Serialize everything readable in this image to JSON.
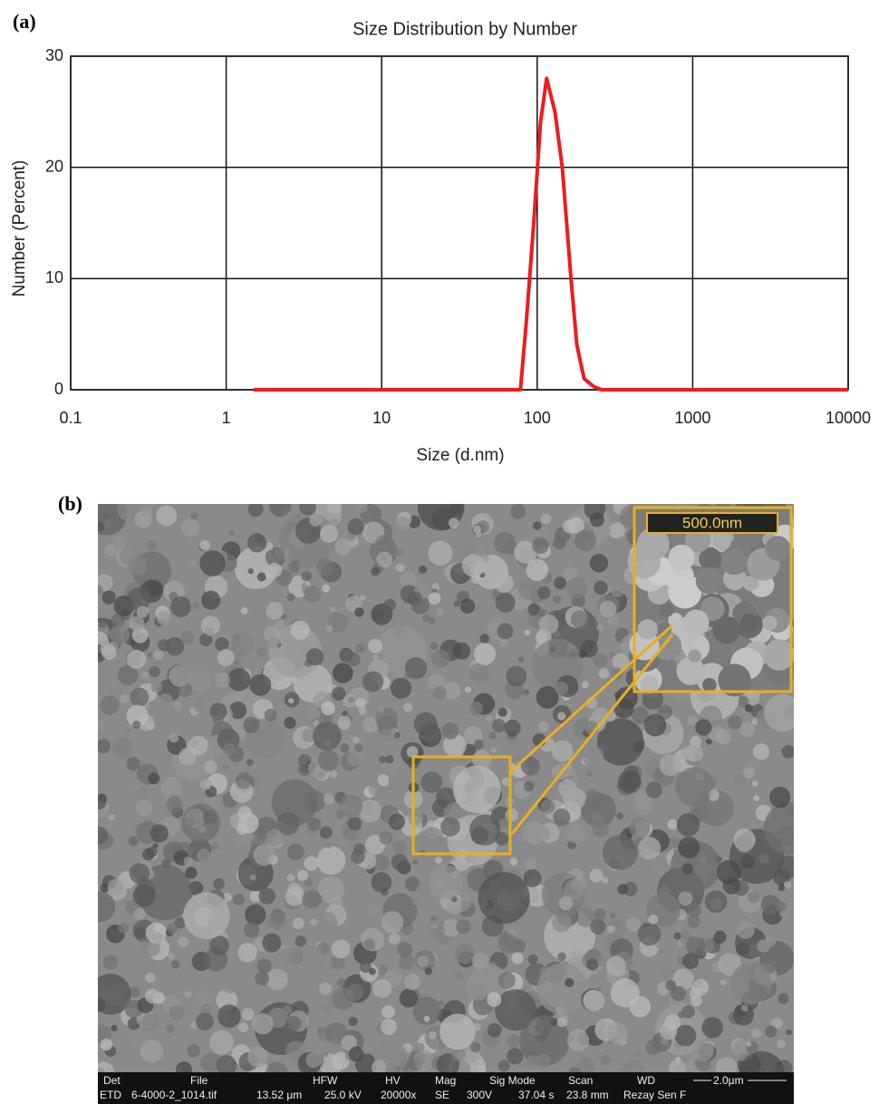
{
  "panel_labels": [
    "(a)",
    "(b)"
  ],
  "chart_data": {
    "type": "line",
    "title": "Size Distribution  by Number",
    "xlabel": "Size (d.nm)",
    "ylabel": "Number (Percent)",
    "x": [
      1.5,
      2,
      3,
      5,
      10,
      20,
      40,
      70,
      78,
      85,
      95,
      105,
      115,
      130,
      145,
      165,
      180,
      200,
      230,
      260,
      500,
      1000,
      3000,
      10000
    ],
    "values": [
      0,
      0,
      0,
      0,
      0,
      0,
      0,
      0,
      0,
      6,
      15,
      24,
      28,
      25,
      20,
      10,
      4,
      1,
      0.3,
      0,
      0,
      0,
      0,
      0
    ],
    "color": "#ee1c1c",
    "log_x": true,
    "grid": true,
    "xlim": [
      0.1,
      10000
    ],
    "xticks": [
      0.1,
      1,
      10,
      100,
      1000,
      10000
    ],
    "ylim": [
      0,
      30
    ],
    "yticks": [
      0,
      10,
      20,
      30
    ]
  },
  "sem_image": {
    "inset_scale": "500.0nm",
    "info_headers": [
      "Det",
      "File",
      "HFW",
      "HV",
      "Mag",
      "Sig Mode",
      "Scan",
      "WD",
      "2.0μm"
    ],
    "info_values": [
      "ETD",
      "6-4000-2_1014.tif",
      "13.52 μm",
      "25.0 kV",
      "20000x",
      "SE",
      "300V",
      "37.04 s",
      "23.8 mm",
      "Rezay Sen F"
    ]
  }
}
